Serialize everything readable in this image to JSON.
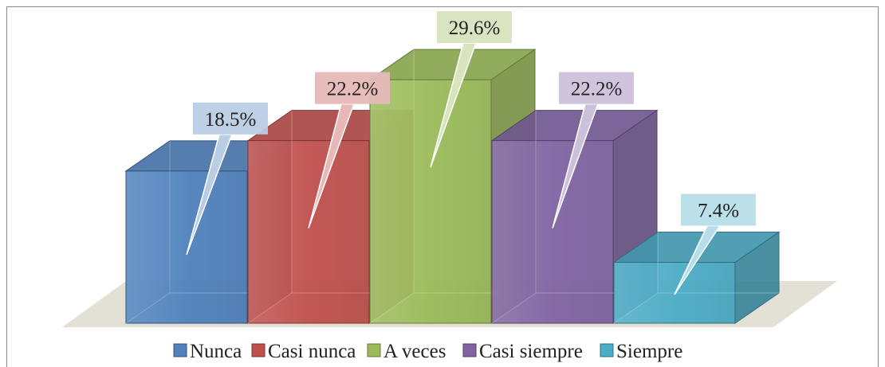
{
  "chart_data": {
    "type": "bar",
    "style": "3d-column",
    "categories": [
      "Nunca",
      "Casi nunca",
      "A veces",
      "Casi siempre",
      "Siempre"
    ],
    "values": [
      18.5,
      22.2,
      29.6,
      22.2,
      7.4
    ],
    "data_labels": [
      "18.5%",
      "22.2%",
      "29.6%",
      "22.2%",
      "7.4%"
    ],
    "legend": {
      "position": "bottom",
      "entries": [
        "Nunca",
        "Casi nunca",
        "A veces",
        "Casi siempre",
        "Siempre"
      ]
    },
    "colors": [
      "#4f81bd",
      "#c0504d",
      "#9bbb59",
      "#8064a2",
      "#4bacc6"
    ],
    "ylim": [
      0,
      30
    ],
    "grid": false,
    "floor_color": "#e3e0d6"
  }
}
